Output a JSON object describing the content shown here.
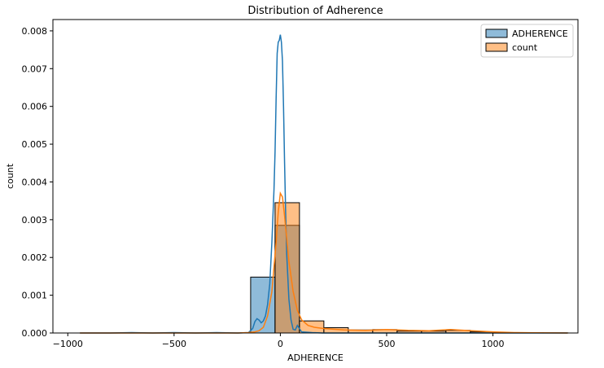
{
  "chart_data": {
    "type": "histogram",
    "title": "Distribution of Adherence",
    "xlabel": "ADHERENCE",
    "ylabel": "count",
    "xlim": [
      -1070,
      1400
    ],
    "ylim": [
      0,
      0.0083
    ],
    "xticks": [
      -1000,
      -500,
      0,
      500,
      1000
    ],
    "xtick_labels": [
      "−1000",
      "−500",
      "0",
      "500",
      "1000"
    ],
    "yticks": [
      0.0,
      0.001,
      0.002,
      0.003,
      0.004,
      0.005,
      0.006,
      0.007,
      0.008
    ],
    "ytick_labels": [
      "0.000",
      "0.001",
      "0.002",
      "0.003",
      "0.004",
      "0.005",
      "0.006",
      "0.007",
      "0.008"
    ],
    "grid": false,
    "legend_position": "top-right",
    "bin_edges": [
      -943.6,
      -828.8,
      -713.9,
      -599.1,
      -484.3,
      -369.4,
      -254.6,
      -139.8,
      -24.9,
      89.9,
      204.7,
      319.6,
      434.4,
      549.2,
      664.1,
      778.9,
      893.7,
      1008.6,
      1123.4,
      1238.2,
      1353.1
    ],
    "series": [
      {
        "name": "ADHERENCE",
        "color": "#1f77b4",
        "fill": "#1f77b4",
        "fill_opacity": 0.5,
        "hist": [
          0,
          0,
          0,
          0,
          0,
          0,
          0,
          0.00148,
          0.00285,
          0,
          0,
          0,
          0,
          0,
          0,
          0,
          0,
          0,
          0,
          0
        ],
        "kde_x": [
          -943,
          -800,
          -700,
          -600,
          -500,
          -400,
          -300,
          -200,
          -150,
          -130,
          -120,
          -110,
          -100,
          -90,
          -80,
          -70,
          -60,
          -50,
          -40,
          -30,
          -25,
          -20,
          -15,
          -10,
          -5,
          0,
          5,
          10,
          15,
          20,
          25,
          30,
          40,
          50,
          60,
          70,
          80,
          100,
          150,
          200,
          300,
          500,
          700,
          900,
          1100,
          1352
        ],
        "kde_y": [
          0.0,
          0.0,
          1e-05,
          0.0,
          1e-05,
          0.0,
          1e-05,
          0.0,
          1e-05,
          0.00012,
          0.0003,
          0.00038,
          0.00034,
          0.00027,
          0.00032,
          0.00045,
          0.00075,
          0.0013,
          0.0024,
          0.0038,
          0.0048,
          0.0062,
          0.0074,
          0.0077,
          0.00775,
          0.0079,
          0.0077,
          0.0072,
          0.006,
          0.0045,
          0.0032,
          0.0021,
          0.0009,
          0.00035,
          0.0001,
          8e-05,
          0.0002,
          3e-05,
          1e-05,
          0.0,
          0.0,
          0.0,
          0.0,
          0.0,
          0.0,
          0.0
        ]
      },
      {
        "name": "count",
        "color": "#ff7f0e",
        "fill": "#ff7f0e",
        "fill_opacity": 0.5,
        "hist": [
          0,
          0,
          0,
          0,
          0,
          0,
          0,
          0,
          0.00345,
          0.00032,
          0.00014,
          8e-05,
          9e-05,
          5e-05,
          5e-05,
          7e-05,
          3e-05,
          1e-05,
          5e-06,
          2e-06
        ],
        "kde_x": [
          -943,
          -400,
          -200,
          -150,
          -120,
          -100,
          -80,
          -60,
          -40,
          -20,
          -10,
          0,
          10,
          20,
          30,
          40,
          60,
          80,
          100,
          130,
          160,
          200,
          250,
          300,
          400,
          500,
          600,
          700,
          800,
          900,
          1000,
          1100,
          1200,
          1352
        ],
        "kde_y": [
          0.0,
          0.0,
          0.0,
          1e-05,
          3e-05,
          6e-05,
          0.00015,
          0.00045,
          0.0011,
          0.0024,
          0.0032,
          0.0037,
          0.0036,
          0.0031,
          0.0025,
          0.0019,
          0.0011,
          0.0006,
          0.00035,
          0.0002,
          0.00015,
          0.00012,
          0.0001,
          8e-05,
          7e-05,
          9e-05,
          7e-05,
          6e-05,
          9e-05,
          6e-05,
          3e-05,
          1e-05,
          5e-06,
          0.0
        ]
      }
    ]
  }
}
